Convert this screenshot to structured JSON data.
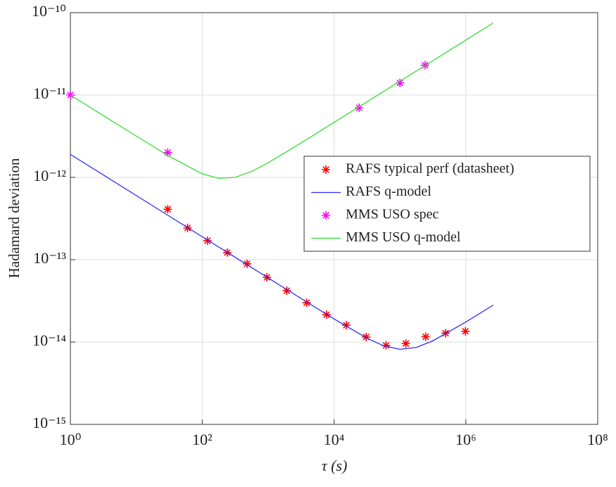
{
  "chart_data": {
    "type": "line",
    "xlabel": "τ (s)",
    "ylabel": "Hadamard deviation",
    "xscale": "log",
    "yscale": "log",
    "grid": true,
    "legend": "right",
    "xlim": [
      1,
      100000000
    ],
    "ylim": [
      1e-15,
      1e-10
    ],
    "xticks": [
      {
        "value": 1,
        "label": "10⁰"
      },
      {
        "value": 100,
        "label": "10²"
      },
      {
        "value": 10000,
        "label": "10⁴"
      },
      {
        "value": 1000000,
        "label": "10⁶"
      },
      {
        "value": 100000000,
        "label": "10⁸"
      }
    ],
    "yticks": [
      {
        "value": 1e-15,
        "label": "10⁻¹⁵"
      },
      {
        "value": 1e-14,
        "label": "10⁻¹⁴"
      },
      {
        "value": 1e-13,
        "label": "10⁻¹³"
      },
      {
        "value": 1e-12,
        "label": "10⁻¹²"
      },
      {
        "value": 1e-11,
        "label": "10⁻¹¹"
      },
      {
        "value": 1e-10,
        "label": "10⁻¹⁰"
      }
    ],
    "series": [
      {
        "name": "RAFS typical perf (datasheet)",
        "color": "#ff0000",
        "style": "markers",
        "x": [
          30,
          60,
          120,
          240,
          480,
          960,
          1920,
          3840,
          7680,
          15360,
          30720,
          61440,
          122880,
          245760,
          491520,
          983040
        ],
        "values": [
          4.1e-13,
          2.43e-13,
          1.7e-13,
          1.22e-13,
          8.9e-14,
          6.1e-14,
          4.2e-14,
          3e-14,
          2.15e-14,
          1.6e-14,
          1.15e-14,
          9.1e-15,
          9.6e-15,
          1.16e-14,
          1.28e-14,
          1.35e-14
        ]
      },
      {
        "name": "RAFS q-model",
        "color": "#2b2bff",
        "style": "line",
        "x": [
          1,
          3.162,
          10,
          31.62,
          100,
          316.2,
          1000,
          3162,
          10000,
          31620,
          56230,
          100000,
          177800,
          316200,
          1000000,
          2600000
        ],
        "values": [
          1.9e-12,
          1.069e-12,
          6.01e-13,
          3.38e-13,
          1.9e-13,
          1.069e-13,
          6.01e-14,
          3.38e-14,
          1.908e-14,
          1.113e-14,
          9.01e-15,
          8.15e-15,
          8.61e-15,
          1.035e-14,
          1.751e-14,
          2.81e-14
        ]
      },
      {
        "name": "MMS USO spec",
        "color": "#ff00ff",
        "style": "markers",
        "x": [
          1,
          30,
          24000,
          100000,
          240000
        ],
        "values": [
          1e-11,
          2e-12,
          7e-12,
          1.4e-11,
          2.3e-11
        ]
      },
      {
        "name": "MMS USO q-model",
        "color": "#33dd33",
        "style": "line",
        "x": [
          1,
          3.162,
          10,
          31.62,
          100,
          177.8,
          316.2,
          562.3,
          1000,
          3162,
          10000,
          31620,
          100000,
          316200,
          1000000,
          2600000
        ],
        "values": [
          1e-11,
          5.62e-12,
          3.17e-12,
          1.8e-12,
          1.103e-12,
          9.73e-13,
          1e-12,
          1.18e-12,
          1.503e-12,
          2.62e-12,
          4.65e-12,
          8.26e-12,
          1.47e-11,
          2.61e-11,
          4.65e-11,
          7.5e-11
        ]
      }
    ]
  }
}
